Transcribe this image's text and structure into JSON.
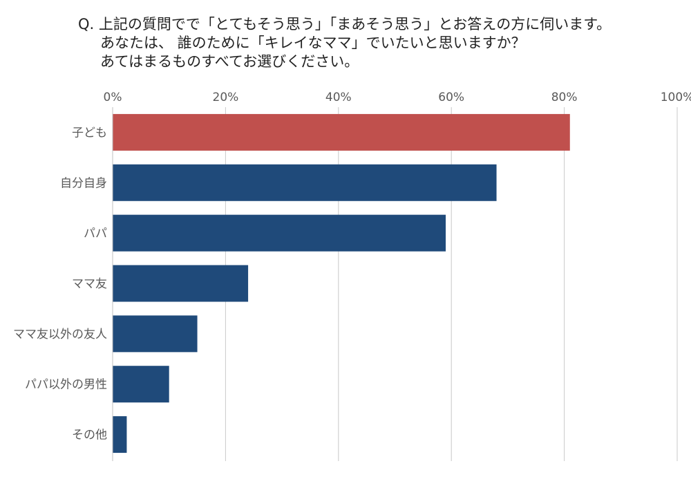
{
  "question": {
    "line1": "Q. 上記の質問でで「とてもそう思う」「まあそう思う」とお答えの方に伺います。",
    "line2": "あなたは、 誰のために「キレイなママ」でいたいと思いますか？",
    "line3": "あてはまるものすべてお選びください。"
  },
  "chart_data": {
    "type": "bar",
    "orientation": "horizontal",
    "categories": [
      "子ども",
      "自分自身",
      "パパ",
      "ママ友",
      "ママ友以外の友人",
      "パパ以外の男性",
      "その他"
    ],
    "values": [
      81,
      68,
      59,
      24,
      15,
      10,
      2.5
    ],
    "xlim": [
      0,
      100
    ],
    "x_ticks": [
      "0%",
      "20%",
      "40%",
      "60%",
      "80%",
      "100%"
    ],
    "x_tick_values": [
      0,
      20,
      40,
      60,
      80,
      100
    ],
    "x_axis_position": "top",
    "grid": true,
    "colors": {
      "highlight": "#c0504d",
      "default": "#1f4a7a",
      "grid": "#c8c8c8",
      "text": "#595959"
    }
  }
}
